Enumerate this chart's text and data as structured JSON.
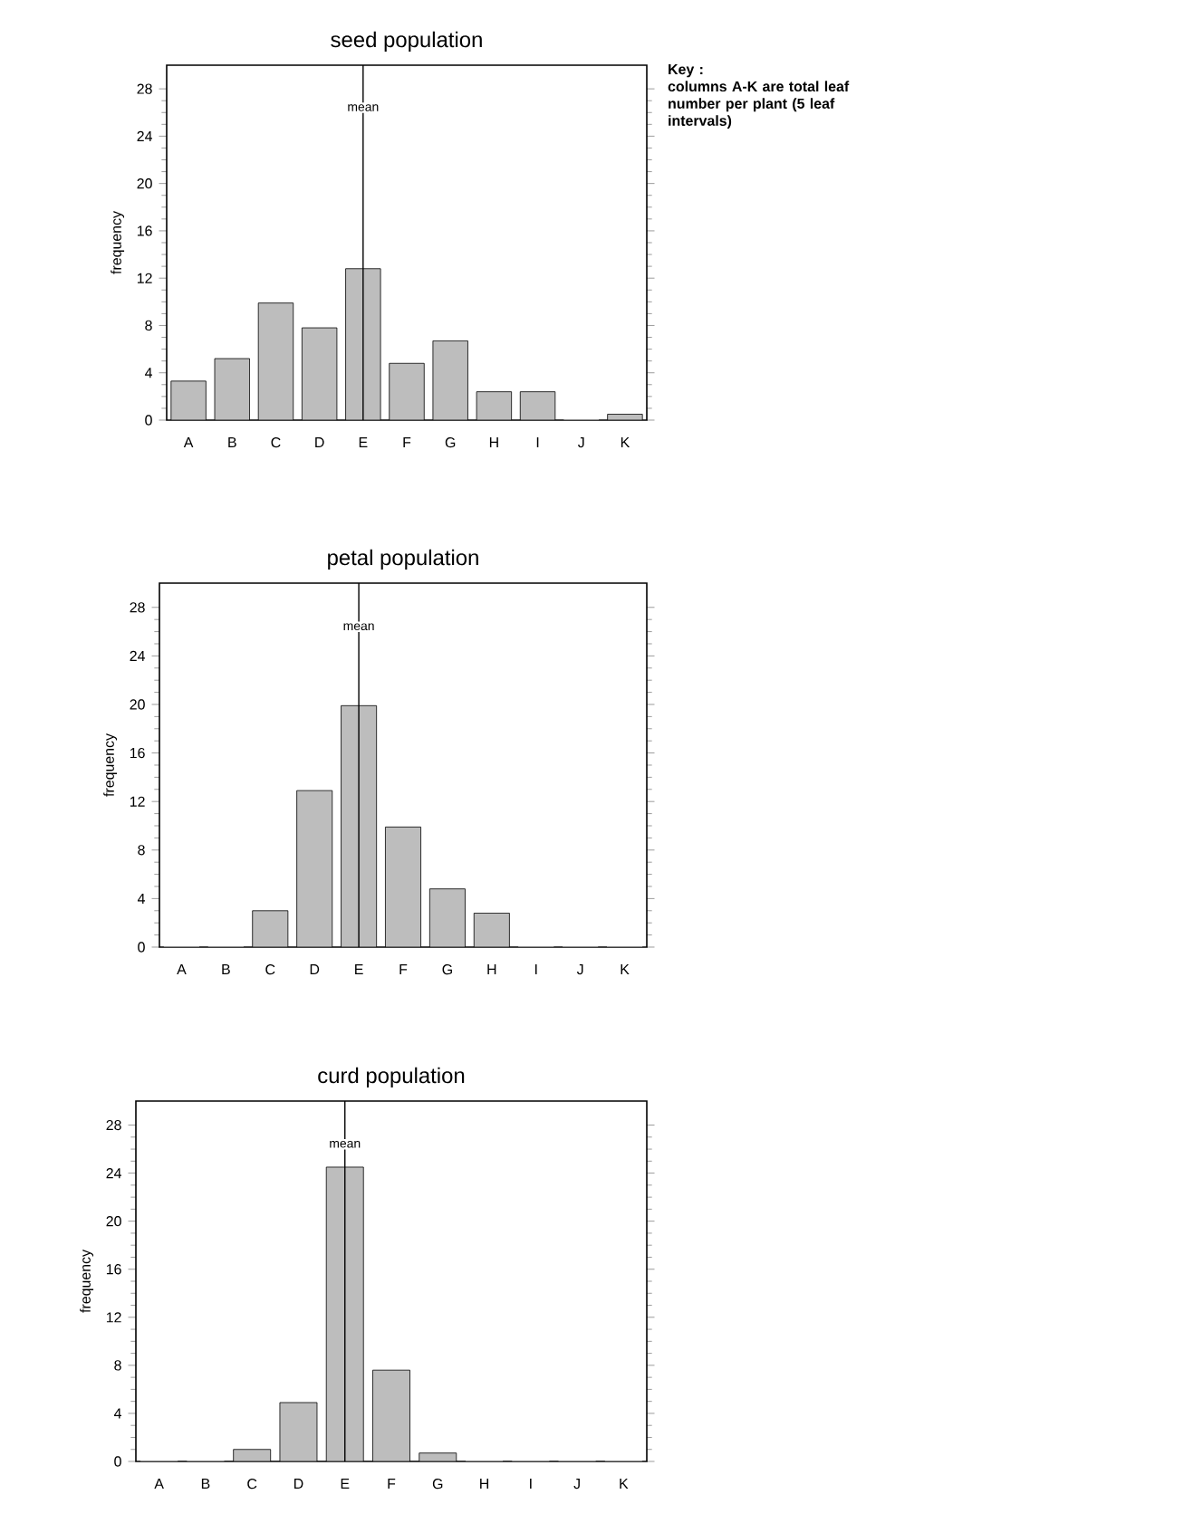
{
  "chart_data": [
    {
      "type": "bar",
      "title": "seed population",
      "ylabel": "frequency",
      "categories": [
        "A",
        "B",
        "C",
        "D",
        "E",
        "F",
        "G",
        "H",
        "I",
        "J",
        "K"
      ],
      "values": [
        3.3,
        5.2,
        9.9,
        7.8,
        12.8,
        4.8,
        6.7,
        2.4,
        2.4,
        0,
        0.5
      ],
      "color": "#bdbdbd",
      "ylim": [
        0,
        30
      ],
      "yticks": [
        0,
        4,
        8,
        12,
        16,
        20,
        24,
        28
      ],
      "ref_lines": [
        {
          "axis": "x",
          "value": "E",
          "label": "mean"
        }
      ],
      "annotations": [
        "Key :",
        "columns A-K are total leaf number per plant (5 leaf intervals)"
      ]
    },
    {
      "type": "bar",
      "title": "petal population",
      "ylabel": "frequency",
      "categories": [
        "A",
        "B",
        "C",
        "D",
        "E",
        "F",
        "G",
        "H",
        "I",
        "J",
        "K"
      ],
      "values": [
        0,
        0,
        3.0,
        12.9,
        19.9,
        9.9,
        4.8,
        2.8,
        0,
        0,
        0
      ],
      "color": "#bdbdbd",
      "ylim": [
        0,
        30
      ],
      "yticks": [
        0,
        4,
        8,
        12,
        16,
        20,
        24,
        28
      ],
      "ref_lines": [
        {
          "axis": "x",
          "value": "E",
          "label": "mean"
        }
      ]
    },
    {
      "type": "bar",
      "title": "curd population",
      "ylabel": "frequency",
      "categories": [
        "A",
        "B",
        "C",
        "D",
        "E",
        "F",
        "G",
        "H",
        "I",
        "J",
        "K"
      ],
      "values": [
        0,
        0,
        1.0,
        4.9,
        24.5,
        7.6,
        0.7,
        0,
        0,
        0,
        0
      ],
      "color": "#bdbdbd",
      "ylim": [
        0,
        30
      ],
      "yticks": [
        0,
        4,
        8,
        12,
        16,
        20,
        24,
        28
      ],
      "ref_lines": [
        {
          "axis": "x",
          "value": "E",
          "label": "mean"
        }
      ]
    }
  ]
}
